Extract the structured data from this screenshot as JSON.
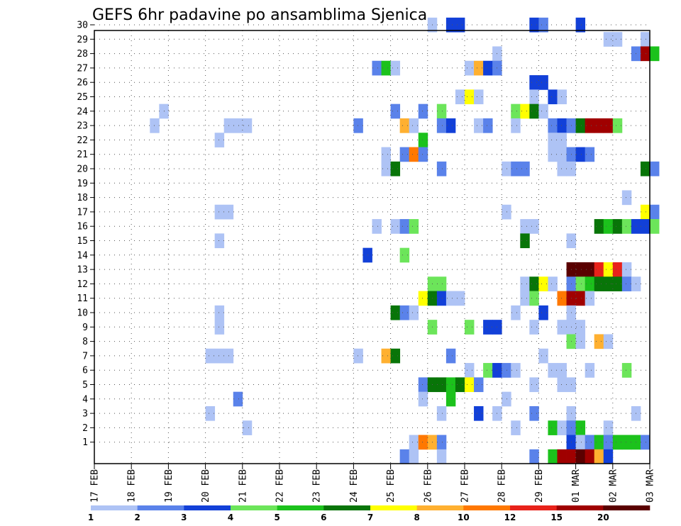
{
  "chart_data": {
    "type": "heatmap",
    "title": "GEFS 6hr padavine po ansamblima Sjenica",
    "y_ticks": [
      1,
      2,
      3,
      4,
      5,
      6,
      7,
      8,
      9,
      10,
      11,
      12,
      13,
      14,
      15,
      16,
      17,
      18,
      19,
      20,
      21,
      22,
      23,
      24,
      25,
      26,
      27,
      28,
      29,
      30
    ],
    "x_ticks": [
      "17 FEB",
      "18 FEB",
      "19 FEB",
      "20 FEB",
      "21 FEB",
      "22 FEB",
      "23 FEB",
      "24 FEB",
      "25 FEB",
      "26 FEB",
      "27 FEB",
      "28 FEB",
      "29 FEB",
      "01 MAR",
      "02 MAR",
      "03 MAR"
    ],
    "grid": true,
    "colorbar": {
      "labels": [
        "1",
        "2",
        "3",
        "4",
        "5",
        "6",
        "7",
        "8",
        "10",
        "12",
        "15",
        "20"
      ],
      "colors": [
        "#aec3f5",
        "#5a82ea",
        "#1240d8",
        "#6ce55a",
        "#1cc21c",
        "#087508",
        "#ffff00",
        "#ffb030",
        "#ff7800",
        "#e8221a",
        "#a00000",
        "#5a0000"
      ]
    },
    "cells_note": "each cell: [member, time step index (6h, 0 = 17 FEB 00Z), color class 1-12]",
    "cells": [
      [
        30,
        36,
        1
      ],
      [
        30,
        38,
        3
      ],
      [
        30,
        39,
        3
      ],
      [
        30,
        47,
        3
      ],
      [
        30,
        48,
        2
      ],
      [
        30,
        52,
        3
      ],
      [
        29,
        55,
        1
      ],
      [
        29,
        56,
        1
      ],
      [
        29,
        59,
        1
      ],
      [
        28,
        43,
        1
      ],
      [
        28,
        58,
        2
      ],
      [
        28,
        59,
        11
      ],
      [
        28,
        60,
        5
      ],
      [
        27,
        30,
        2
      ],
      [
        27,
        31,
        5
      ],
      [
        27,
        32,
        1
      ],
      [
        27,
        40,
        1
      ],
      [
        27,
        41,
        8
      ],
      [
        27,
        42,
        3
      ],
      [
        27,
        43,
        2
      ],
      [
        26,
        47,
        3
      ],
      [
        26,
        48,
        3
      ],
      [
        25,
        39,
        1
      ],
      [
        25,
        40,
        7
      ],
      [
        25,
        41,
        1
      ],
      [
        25,
        47,
        1
      ],
      [
        25,
        49,
        3
      ],
      [
        25,
        50,
        1
      ],
      [
        24,
        7,
        1
      ],
      [
        24,
        32,
        2
      ],
      [
        24,
        35,
        2
      ],
      [
        24,
        37,
        4
      ],
      [
        24,
        45,
        4
      ],
      [
        24,
        46,
        7
      ],
      [
        24,
        47,
        6
      ],
      [
        24,
        48,
        1
      ],
      [
        23,
        6,
        1
      ],
      [
        23,
        14,
        1
      ],
      [
        23,
        15,
        1
      ],
      [
        23,
        16,
        1
      ],
      [
        23,
        28,
        2
      ],
      [
        23,
        33,
        8
      ],
      [
        23,
        34,
        1
      ],
      [
        23,
        37,
        2
      ],
      [
        23,
        38,
        3
      ],
      [
        23,
        41,
        1
      ],
      [
        23,
        42,
        2
      ],
      [
        23,
        45,
        1
      ],
      [
        23,
        49,
        2
      ],
      [
        23,
        50,
        3
      ],
      [
        23,
        51,
        2
      ],
      [
        23,
        52,
        6
      ],
      [
        23,
        53,
        11
      ],
      [
        23,
        54,
        11
      ],
      [
        23,
        55,
        11
      ],
      [
        23,
        56,
        4
      ],
      [
        22,
        13,
        1
      ],
      [
        22,
        35,
        5
      ],
      [
        22,
        49,
        1
      ],
      [
        22,
        50,
        1
      ],
      [
        21,
        31,
        1
      ],
      [
        21,
        33,
        2
      ],
      [
        21,
        34,
        9
      ],
      [
        21,
        35,
        2
      ],
      [
        21,
        49,
        1
      ],
      [
        21,
        50,
        1
      ],
      [
        21,
        51,
        2
      ],
      [
        21,
        52,
        3
      ],
      [
        21,
        53,
        2
      ],
      [
        20,
        31,
        1
      ],
      [
        20,
        32,
        6
      ],
      [
        20,
        37,
        2
      ],
      [
        20,
        44,
        1
      ],
      [
        20,
        45,
        2
      ],
      [
        20,
        46,
        2
      ],
      [
        20,
        50,
        1
      ],
      [
        20,
        51,
        1
      ],
      [
        20,
        59,
        6
      ],
      [
        20,
        60,
        2
      ],
      [
        18,
        57,
        1
      ],
      [
        17,
        13,
        1
      ],
      [
        17,
        14,
        1
      ],
      [
        17,
        44,
        1
      ],
      [
        17,
        59,
        7
      ],
      [
        17,
        60,
        2
      ],
      [
        16,
        30,
        1
      ],
      [
        16,
        32,
        1
      ],
      [
        16,
        33,
        2
      ],
      [
        16,
        34,
        4
      ],
      [
        16,
        46,
        1
      ],
      [
        16,
        47,
        1
      ],
      [
        16,
        54,
        6
      ],
      [
        16,
        55,
        5
      ],
      [
        16,
        56,
        6
      ],
      [
        16,
        57,
        4
      ],
      [
        16,
        58,
        3
      ],
      [
        16,
        59,
        3
      ],
      [
        16,
        60,
        4
      ],
      [
        15,
        13,
        1
      ],
      [
        15,
        46,
        6
      ],
      [
        15,
        51,
        1
      ],
      [
        14,
        29,
        3
      ],
      [
        14,
        33,
        4
      ],
      [
        13,
        51,
        12
      ],
      [
        13,
        52,
        12
      ],
      [
        13,
        53,
        12
      ],
      [
        13,
        54,
        10
      ],
      [
        13,
        55,
        7
      ],
      [
        13,
        56,
        10
      ],
      [
        13,
        57,
        1
      ],
      [
        12,
        36,
        4
      ],
      [
        12,
        37,
        4
      ],
      [
        12,
        46,
        1
      ],
      [
        12,
        47,
        6
      ],
      [
        12,
        48,
        7
      ],
      [
        12,
        49,
        1
      ],
      [
        12,
        51,
        2
      ],
      [
        12,
        52,
        4
      ],
      [
        12,
        53,
        5
      ],
      [
        12,
        54,
        6
      ],
      [
        12,
        55,
        6
      ],
      [
        12,
        56,
        6
      ],
      [
        12,
        57,
        2
      ],
      [
        12,
        58,
        1
      ],
      [
        11,
        35,
        7
      ],
      [
        11,
        36,
        6
      ],
      [
        11,
        37,
        3
      ],
      [
        11,
        38,
        1
      ],
      [
        11,
        39,
        1
      ],
      [
        11,
        46,
        1
      ],
      [
        11,
        47,
        4
      ],
      [
        11,
        50,
        9
      ],
      [
        11,
        51,
        11
      ],
      [
        11,
        52,
        11
      ],
      [
        11,
        53,
        1
      ],
      [
        10,
        13,
        1
      ],
      [
        10,
        32,
        6
      ],
      [
        10,
        33,
        2
      ],
      [
        10,
        34,
        1
      ],
      [
        10,
        45,
        1
      ],
      [
        10,
        48,
        3
      ],
      [
        10,
        51,
        1
      ],
      [
        9,
        13,
        1
      ],
      [
        9,
        36,
        4
      ],
      [
        9,
        40,
        4
      ],
      [
        9,
        42,
        3
      ],
      [
        9,
        43,
        3
      ],
      [
        9,
        47,
        1
      ],
      [
        9,
        50,
        1
      ],
      [
        9,
        51,
        1
      ],
      [
        9,
        52,
        1
      ],
      [
        8,
        51,
        4
      ],
      [
        8,
        52,
        1
      ],
      [
        8,
        54,
        8
      ],
      [
        8,
        55,
        1
      ],
      [
        7,
        12,
        1
      ],
      [
        7,
        13,
        1
      ],
      [
        7,
        14,
        1
      ],
      [
        7,
        28,
        1
      ],
      [
        7,
        31,
        8
      ],
      [
        7,
        32,
        6
      ],
      [
        7,
        38,
        2
      ],
      [
        7,
        48,
        1
      ],
      [
        6,
        40,
        1
      ],
      [
        6,
        42,
        4
      ],
      [
        6,
        43,
        3
      ],
      [
        6,
        44,
        2
      ],
      [
        6,
        45,
        1
      ],
      [
        6,
        49,
        1
      ],
      [
        6,
        50,
        1
      ],
      [
        6,
        53,
        1
      ],
      [
        6,
        57,
        4
      ],
      [
        5,
        35,
        2
      ],
      [
        5,
        36,
        6
      ],
      [
        5,
        37,
        6
      ],
      [
        5,
        38,
        5
      ],
      [
        5,
        39,
        6
      ],
      [
        5,
        40,
        7
      ],
      [
        5,
        41,
        2
      ],
      [
        5,
        47,
        1
      ],
      [
        5,
        50,
        1
      ],
      [
        5,
        51,
        1
      ],
      [
        4,
        15,
        2
      ],
      [
        4,
        35,
        1
      ],
      [
        4,
        38,
        5
      ],
      [
        4,
        44,
        1
      ],
      [
        3,
        12,
        1
      ],
      [
        3,
        37,
        1
      ],
      [
        3,
        41,
        3
      ],
      [
        3,
        43,
        1
      ],
      [
        3,
        47,
        2
      ],
      [
        3,
        51,
        1
      ],
      [
        3,
        58,
        1
      ],
      [
        2,
        16,
        1
      ],
      [
        2,
        45,
        1
      ],
      [
        2,
        49,
        5
      ],
      [
        2,
        50,
        1
      ],
      [
        2,
        51,
        2
      ],
      [
        2,
        52,
        5
      ],
      [
        2,
        55,
        1
      ],
      [
        1,
        34,
        1
      ],
      [
        1,
        35,
        9
      ],
      [
        1,
        36,
        8
      ],
      [
        1,
        37,
        2
      ],
      [
        1,
        51,
        3
      ],
      [
        1,
        52,
        1
      ],
      [
        1,
        53,
        2
      ],
      [
        1,
        54,
        5
      ],
      [
        1,
        55,
        2
      ],
      [
        1,
        56,
        5
      ],
      [
        1,
        57,
        5
      ],
      [
        1,
        58,
        5
      ],
      [
        1,
        59,
        2
      ],
      [
        0,
        33,
        2
      ],
      [
        0,
        34,
        1
      ],
      [
        0,
        37,
        1
      ],
      [
        0,
        47,
        2
      ],
      [
        0,
        49,
        5
      ],
      [
        0,
        50,
        11
      ],
      [
        0,
        51,
        11
      ],
      [
        0,
        52,
        12
      ],
      [
        0,
        53,
        11
      ],
      [
        0,
        54,
        8
      ],
      [
        0,
        55,
        3
      ]
    ]
  }
}
